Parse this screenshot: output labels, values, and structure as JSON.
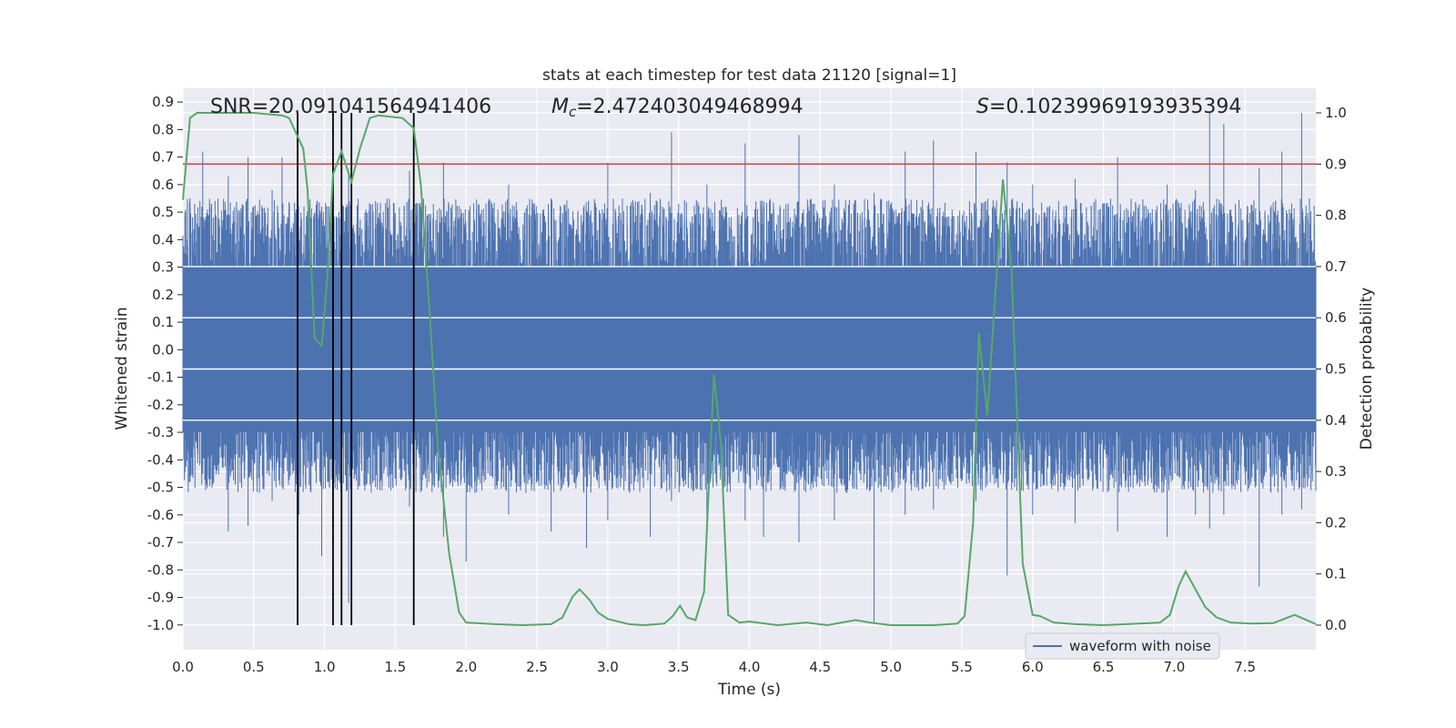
{
  "chart_data": {
    "type": "line",
    "title": "stats at each timestep for test data 21120 [signal=1]",
    "xlabel": "Time (s)",
    "ylabel": "Whitened strain",
    "y2label": "Detection probability",
    "xlim": [
      0.0,
      8.0
    ],
    "ylim": [
      -1.09,
      0.95
    ],
    "y2lim": [
      -0.048,
      1.048
    ],
    "xticks": [
      "0.0",
      "0.5",
      "1.0",
      "1.5",
      "2.0",
      "2.5",
      "3.0",
      "3.5",
      "4.0",
      "4.5",
      "5.0",
      "5.5",
      "6.0",
      "6.5",
      "7.0",
      "7.5"
    ],
    "yticks": [
      "0.9",
      "0.8",
      "0.7",
      "0.6",
      "0.5",
      "0.4",
      "0.3",
      "0.2",
      "0.1",
      "0.0",
      "-0.1",
      "-0.2",
      "-0.3",
      "-0.4",
      "-0.5",
      "-0.6",
      "-0.7",
      "-0.8",
      "-0.9",
      "-1.0"
    ],
    "y2ticks": [
      "0.0",
      "0.1",
      "0.2",
      "0.3",
      "0.4",
      "0.5",
      "0.6",
      "0.7",
      "0.8",
      "0.9",
      "1.0"
    ],
    "stats": {
      "snr": "SNR=20.091041564941406",
      "mc_symbol": "M",
      "mc_sub": "c",
      "mc_value": "=2.472403049468994",
      "s_symbol": "S",
      "s_value": "=0.10239969193935394"
    },
    "threshold": {
      "y2": 0.9,
      "color": "#c44e52"
    },
    "detection_markers_x": [
      0.81,
      1.06,
      1.12,
      1.19,
      1.63
    ],
    "waveform": {
      "name": "waveform with noise",
      "color": "#4c72b0",
      "body_range": [
        -0.3,
        0.3
      ],
      "spikes": [
        [
          0.05,
          0.55,
          -0.48
        ],
        [
          0.14,
          0.72,
          -0.45
        ],
        [
          0.32,
          0.63,
          -0.66
        ],
        [
          0.46,
          0.7,
          -0.64
        ],
        [
          0.63,
          0.58,
          -0.55
        ],
        [
          0.7,
          0.7,
          -0.5
        ],
        [
          0.82,
          0.4,
          -0.6
        ],
        [
          0.98,
          0.52,
          -0.75
        ],
        [
          1.17,
          0.65,
          -0.92
        ],
        [
          1.36,
          0.54,
          -0.5
        ],
        [
          1.6,
          0.65,
          -0.57
        ],
        [
          1.84,
          0.68,
          -0.68
        ],
        [
          2.0,
          0.42,
          -0.77
        ],
        [
          2.3,
          0.6,
          -0.6
        ],
        [
          2.6,
          0.55,
          -0.66
        ],
        [
          2.85,
          0.5,
          -0.72
        ],
        [
          3.0,
          0.68,
          -0.62
        ],
        [
          3.3,
          0.57,
          -0.68
        ],
        [
          3.45,
          0.79,
          -0.55
        ],
        [
          3.7,
          0.6,
          -0.67
        ],
        [
          3.97,
          0.75,
          -0.62
        ],
        [
          4.1,
          0.52,
          -0.68
        ],
        [
          4.35,
          0.78,
          -0.7
        ],
        [
          4.6,
          0.6,
          -0.62
        ],
        [
          4.88,
          0.57,
          -0.99
        ],
        [
          5.1,
          0.72,
          -0.6
        ],
        [
          5.3,
          0.76,
          -0.58
        ],
        [
          5.6,
          0.72,
          -0.55
        ],
        [
          5.82,
          0.68,
          -0.82
        ],
        [
          6.0,
          0.6,
          -0.6
        ],
        [
          6.3,
          0.62,
          -0.63
        ],
        [
          6.6,
          0.7,
          -0.66
        ],
        [
          6.95,
          0.6,
          -0.68
        ],
        [
          7.15,
          0.58,
          -0.6
        ],
        [
          7.25,
          0.86,
          -0.65
        ],
        [
          7.35,
          0.82,
          -0.6
        ],
        [
          7.6,
          0.66,
          -0.86
        ],
        [
          7.76,
          0.72,
          -0.6
        ],
        [
          7.9,
          0.86,
          -0.58
        ]
      ]
    },
    "probability": {
      "color": "#55a868",
      "points": [
        [
          0.0,
          0.83
        ],
        [
          0.05,
          0.99
        ],
        [
          0.1,
          1.0
        ],
        [
          0.3,
          1.0
        ],
        [
          0.5,
          1.0
        ],
        [
          0.7,
          0.995
        ],
        [
          0.75,
          0.99
        ],
        [
          0.8,
          0.96
        ],
        [
          0.85,
          0.93
        ],
        [
          0.88,
          0.85
        ],
        [
          0.93,
          0.56
        ],
        [
          0.98,
          0.545
        ],
        [
          1.02,
          0.68
        ],
        [
          1.06,
          0.88
        ],
        [
          1.12,
          0.925
        ],
        [
          1.19,
          0.865
        ],
        [
          1.25,
          0.93
        ],
        [
          1.32,
          0.99
        ],
        [
          1.38,
          0.995
        ],
        [
          1.55,
          0.99
        ],
        [
          1.63,
          0.97
        ],
        [
          1.68,
          0.86
        ],
        [
          1.74,
          0.62
        ],
        [
          1.8,
          0.35
        ],
        [
          1.88,
          0.14
        ],
        [
          1.95,
          0.025
        ],
        [
          2.0,
          0.005
        ],
        [
          2.2,
          0.002
        ],
        [
          2.4,
          0.0
        ],
        [
          2.6,
          0.002
        ],
        [
          2.68,
          0.015
        ],
        [
          2.75,
          0.055
        ],
        [
          2.8,
          0.07
        ],
        [
          2.87,
          0.05
        ],
        [
          2.93,
          0.025
        ],
        [
          3.0,
          0.012
        ],
        [
          3.15,
          0.002
        ],
        [
          3.25,
          0.0
        ],
        [
          3.4,
          0.003
        ],
        [
          3.46,
          0.018
        ],
        [
          3.51,
          0.038
        ],
        [
          3.56,
          0.015
        ],
        [
          3.62,
          0.01
        ],
        [
          3.68,
          0.065
        ],
        [
          3.75,
          0.49
        ],
        [
          3.8,
          0.35
        ],
        [
          3.85,
          0.02
        ],
        [
          3.93,
          0.005
        ],
        [
          4.0,
          0.007
        ],
        [
          4.2,
          0.0
        ],
        [
          4.4,
          0.005
        ],
        [
          4.55,
          0.0
        ],
        [
          4.75,
          0.01
        ],
        [
          4.85,
          0.005
        ],
        [
          5.0,
          0.0
        ],
        [
          5.3,
          0.0
        ],
        [
          5.47,
          0.003
        ],
        [
          5.52,
          0.018
        ],
        [
          5.58,
          0.2
        ],
        [
          5.62,
          0.57
        ],
        [
          5.68,
          0.41
        ],
        [
          5.79,
          0.87
        ],
        [
          5.85,
          0.7
        ],
        [
          5.93,
          0.12
        ],
        [
          6.0,
          0.02
        ],
        [
          6.05,
          0.018
        ],
        [
          6.15,
          0.005
        ],
        [
          6.3,
          0.002
        ],
        [
          6.5,
          0.0
        ],
        [
          6.9,
          0.005
        ],
        [
          6.97,
          0.02
        ],
        [
          7.03,
          0.075
        ],
        [
          7.08,
          0.105
        ],
        [
          7.17,
          0.06
        ],
        [
          7.22,
          0.035
        ],
        [
          7.3,
          0.015
        ],
        [
          7.4,
          0.005
        ],
        [
          7.55,
          0.003
        ],
        [
          7.7,
          0.004
        ],
        [
          7.85,
          0.02
        ],
        [
          8.0,
          0.002
        ]
      ]
    }
  }
}
